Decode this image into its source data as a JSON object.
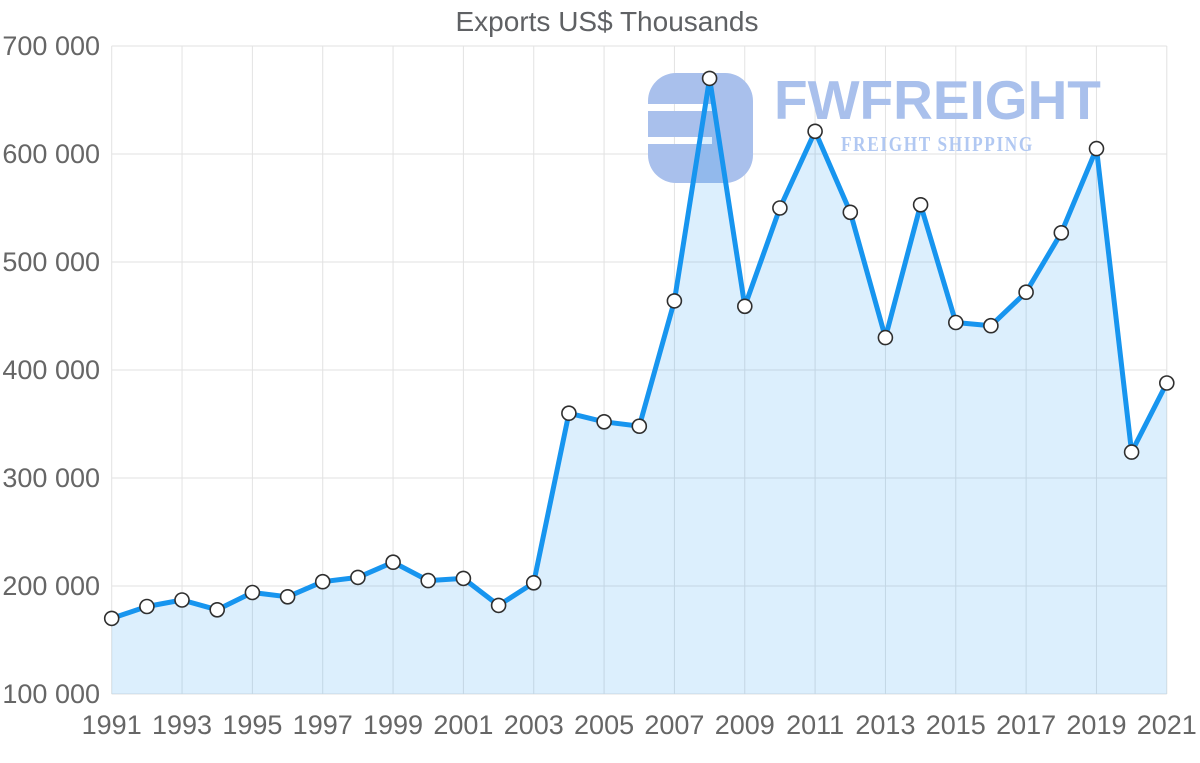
{
  "title": "Exports US$ Thousands",
  "watermark": {
    "brand": "FWFREIGHT",
    "subtitle": "FREIGHT SHIPPING",
    "logo": "fwfreight-logo",
    "color": "#a9c0ec",
    "subtitle_color": "#b1c8f2"
  },
  "chart_data": {
    "type": "area",
    "title": "Exports US$ Thousands",
    "xlabel": "",
    "ylabel": "",
    "x": [
      1991,
      1992,
      1993,
      1994,
      1995,
      1996,
      1997,
      1998,
      1999,
      2000,
      2001,
      2002,
      2003,
      2004,
      2005,
      2006,
      2007,
      2008,
      2009,
      2010,
      2011,
      2012,
      2013,
      2014,
      2015,
      2016,
      2017,
      2018,
      2019,
      2020,
      2021
    ],
    "series": [
      {
        "name": "Exports US$ Thousands",
        "values": [
          170000,
          181000,
          187000,
          178000,
          194000,
          190000,
          204000,
          208000,
          222000,
          205000,
          207000,
          182000,
          203000,
          360000,
          352000,
          348000,
          464000,
          670000,
          459000,
          550000,
          621000,
          546000,
          430000,
          553000,
          444000,
          441000,
          472000,
          527000,
          605000,
          324000,
          388000
        ]
      }
    ],
    "ylim": [
      100000,
      700000
    ],
    "ytick_values": [
      700000,
      600000,
      500000,
      400000,
      300000,
      200000,
      100000
    ],
    "ytick_labels": [
      "700 000",
      "600 000",
      "500 000",
      "400 000",
      "300 000",
      "200 000",
      "100 000"
    ],
    "xtick_values": [
      1991,
      1993,
      1995,
      1997,
      1999,
      2001,
      2003,
      2005,
      2007,
      2009,
      2011,
      2013,
      2015,
      2017,
      2019,
      2021
    ],
    "grid": true,
    "legend": "none",
    "colors": {
      "line": "#1795ef",
      "fill": "#1795ef",
      "fill_opacity": 0.15,
      "grid": "#e2e2e2",
      "marker_fill": "#ffffff",
      "marker_stroke": "#2f2f2f",
      "axis_text": "#666666",
      "title_text": "#5f6164"
    }
  }
}
